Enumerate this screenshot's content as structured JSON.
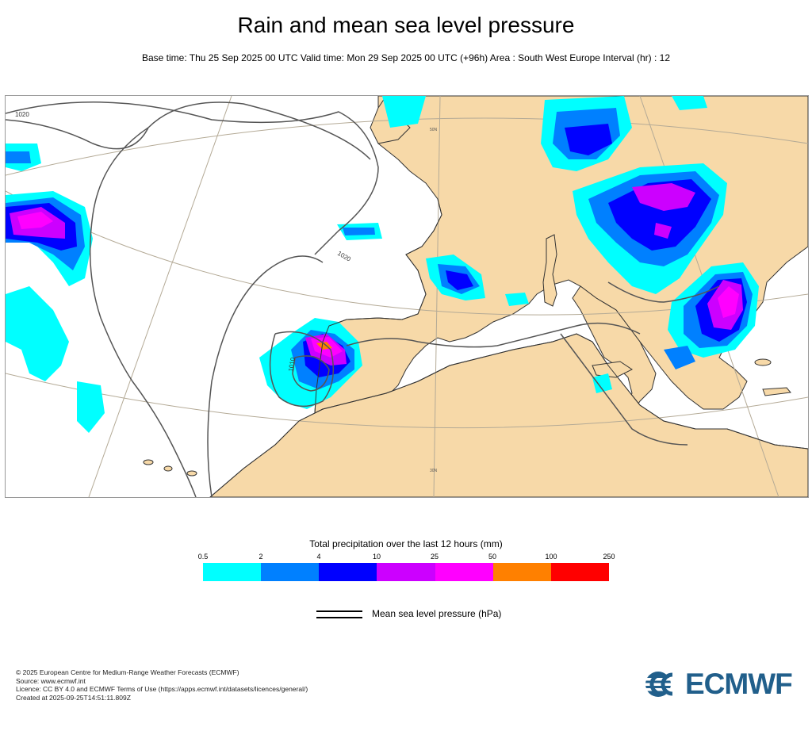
{
  "title": "Rain and mean sea level pressure",
  "subtitle": "Base time: Thu 25 Sep 2025 00 UTC Valid time: Mon 29 Sep 2025 00 UTC (+96h) Area : South West Europe Interval (hr) : 12",
  "map": {
    "isobar_labels": [
      "1020",
      "1020",
      "1010"
    ],
    "graticule_labels": [
      "50N",
      "30N"
    ],
    "colors": {
      "land": "#f7d9a8",
      "sea": "#ffffff",
      "coast": "#333333",
      "isobar": "#555555",
      "graticule": "#b4aa96"
    }
  },
  "legend": {
    "precip_title": "Total precipitation over the last 12 hours (mm)",
    "thresholds": [
      "0.5",
      "2",
      "4",
      "10",
      "25",
      "50",
      "100",
      "250"
    ],
    "colors": [
      "#00ffff",
      "#0080ff",
      "#0000ff",
      "#cc00ff",
      "#ff00ff",
      "#ff8000",
      "#ff0000"
    ],
    "mslp_label": "Mean sea level pressure (hPa)"
  },
  "footer": {
    "lines": [
      "© 2025 European Centre for Medium-Range Weather Forecasts (ECMWF)",
      "Source: www.ecmwf.int",
      "Licence: CC BY 4.0 and ECMWF Terms of Use (https://apps.ecmwf.int/datasets/licences/general/)",
      "Created at 2025-09-25T14:51:11.809Z"
    ]
  },
  "logo": {
    "text": "ECMWF",
    "color": "#215f8b"
  }
}
